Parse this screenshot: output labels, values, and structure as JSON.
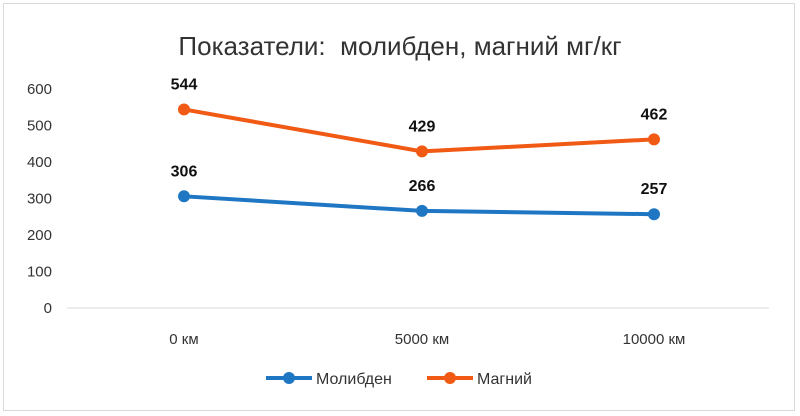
{
  "chart_data": {
    "type": "line",
    "title": "Показатели:  молибден, магний мг/кг",
    "categories": [
      "0 км",
      "5000 км",
      "10000 км"
    ],
    "series": [
      {
        "name": "Молибден",
        "color": "#1f77c4",
        "values": [
          306,
          266,
          257
        ]
      },
      {
        "name": "Магний",
        "color": "#f05a14",
        "values": [
          544,
          429,
          462
        ]
      }
    ],
    "ylim": [
      0,
      600
    ],
    "yticks": [
      0,
      100,
      200,
      300,
      400,
      500,
      600
    ],
    "xlabel": "",
    "ylabel": "",
    "grid": false,
    "legend": "bottom",
    "data_labels": true
  }
}
